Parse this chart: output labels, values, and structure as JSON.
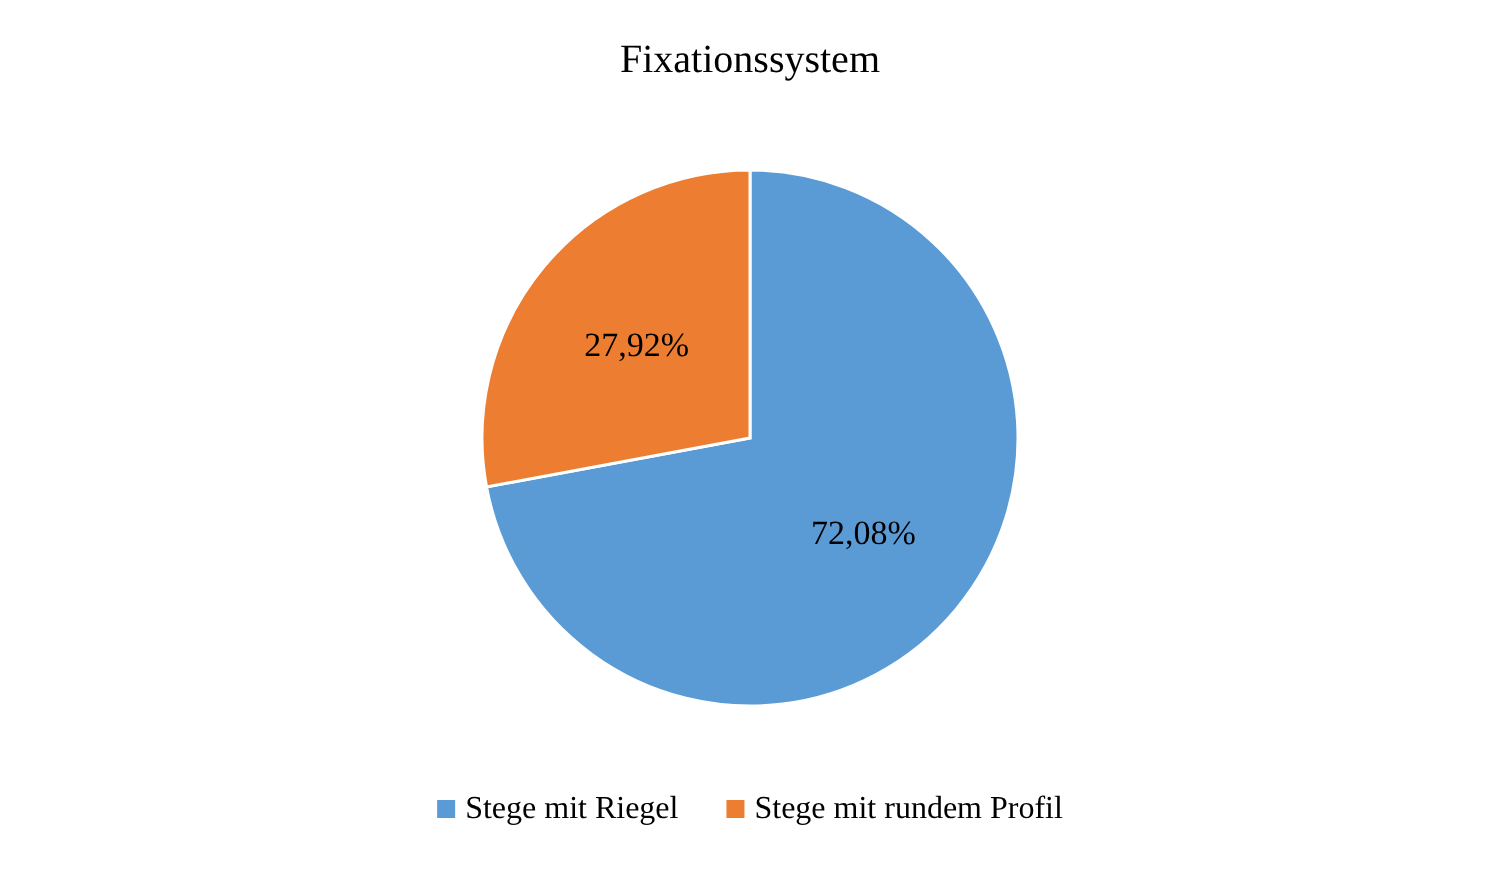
{
  "chart_data": {
    "type": "pie",
    "title": "Fixationssystem",
    "categories": [
      "Stege mit Riegel",
      "Stege mit rundem Profil"
    ],
    "values": [
      72.08,
      27.92
    ],
    "colors": [
      "#5b9bd5",
      "#ed7d31"
    ],
    "value_labels": [
      "72,08%",
      "27,92%"
    ],
    "legend": "bottom"
  }
}
